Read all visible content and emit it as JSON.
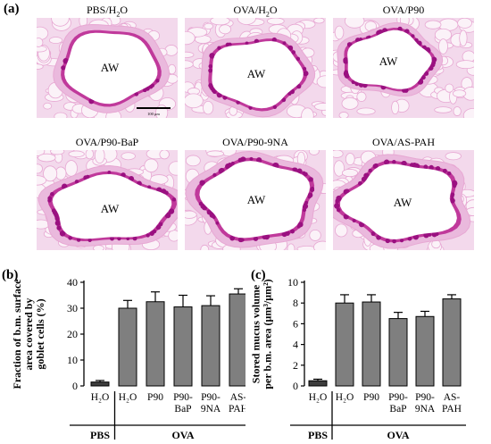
{
  "panel_a": {
    "letter": "(a)",
    "images": [
      {
        "title_main": "PBS/H",
        "title_sub": "2",
        "title_tail": "O",
        "airway_label": "AW",
        "scale_bar_text": "100 μm"
      },
      {
        "title_main": "OVA/H",
        "title_sub": "2",
        "title_tail": "O",
        "airway_label": "AW"
      },
      {
        "title_main": "OVA/P90",
        "title_sub": "",
        "title_tail": "",
        "airway_label": "AW"
      },
      {
        "title_main": "OVA/P90-BaP",
        "title_sub": "",
        "title_tail": "",
        "airway_label": "AW"
      },
      {
        "title_main": "OVA/P90-9NA",
        "title_sub": "",
        "title_tail": "",
        "airway_label": "AW"
      },
      {
        "title_main": "OVA/AS-PAH",
        "title_sub": "",
        "title_tail": "",
        "airway_label": "AW"
      }
    ],
    "colors": {
      "tissue_bg": "#f3d9ec",
      "tissue_line": "#e7a8d3",
      "epithelium": "#c0399b",
      "goblet": "#9a1080",
      "lumen": "#ffffff"
    }
  },
  "chart_data": [
    {
      "panel": "(b)",
      "type": "bar",
      "ylabel_lines": [
        "Fraction of b.m. surface",
        "area covered by",
        "goblet cells (%)"
      ],
      "ylim": [
        0,
        40
      ],
      "yticks": [
        0,
        10,
        20,
        30,
        40
      ],
      "categories": [
        [
          "H₂O"
        ],
        [
          "H₂O"
        ],
        [
          "P90"
        ],
        [
          "P90-",
          "BaP"
        ],
        [
          "P90-",
          "9NA"
        ],
        [
          "AS-",
          "PAH"
        ]
      ],
      "values": [
        1.5,
        30,
        32.5,
        30.5,
        31,
        35.5
      ],
      "errors": [
        0.6,
        3,
        3.8,
        4.5,
        3.8,
        2
      ],
      "groups": [
        {
          "label": "PBS",
          "span": [
            0,
            0
          ]
        },
        {
          "label": "OVA",
          "span": [
            1,
            5
          ]
        }
      ],
      "bar_colors": [
        "#3d3d3d",
        "#7f7f7f",
        "#7f7f7f",
        "#7f7f7f",
        "#7f7f7f",
        "#7f7f7f"
      ]
    },
    {
      "panel": "(c)",
      "type": "bar",
      "ylabel_lines": [
        "Stored mucus volume",
        "per b.m. area (μm³/μm²)"
      ],
      "ylim": [
        0,
        10
      ],
      "yticks": [
        0,
        2,
        4,
        6,
        8,
        10
      ],
      "categories": [
        [
          "H₂O"
        ],
        [
          "H₂O"
        ],
        [
          "P90"
        ],
        [
          "P90-",
          "BaP"
        ],
        [
          "P90-",
          "9NA"
        ],
        [
          "AS-",
          "PAH"
        ]
      ],
      "values": [
        0.5,
        8,
        8.1,
        6.5,
        6.7,
        8.4
      ],
      "errors": [
        0.15,
        0.8,
        0.7,
        0.6,
        0.5,
        0.4
      ],
      "groups": [
        {
          "label": "PBS",
          "span": [
            0,
            0
          ]
        },
        {
          "label": "OVA",
          "span": [
            1,
            5
          ]
        }
      ],
      "bar_colors": [
        "#3d3d3d",
        "#7f7f7f",
        "#7f7f7f",
        "#7f7f7f",
        "#7f7f7f",
        "#7f7f7f"
      ]
    }
  ]
}
